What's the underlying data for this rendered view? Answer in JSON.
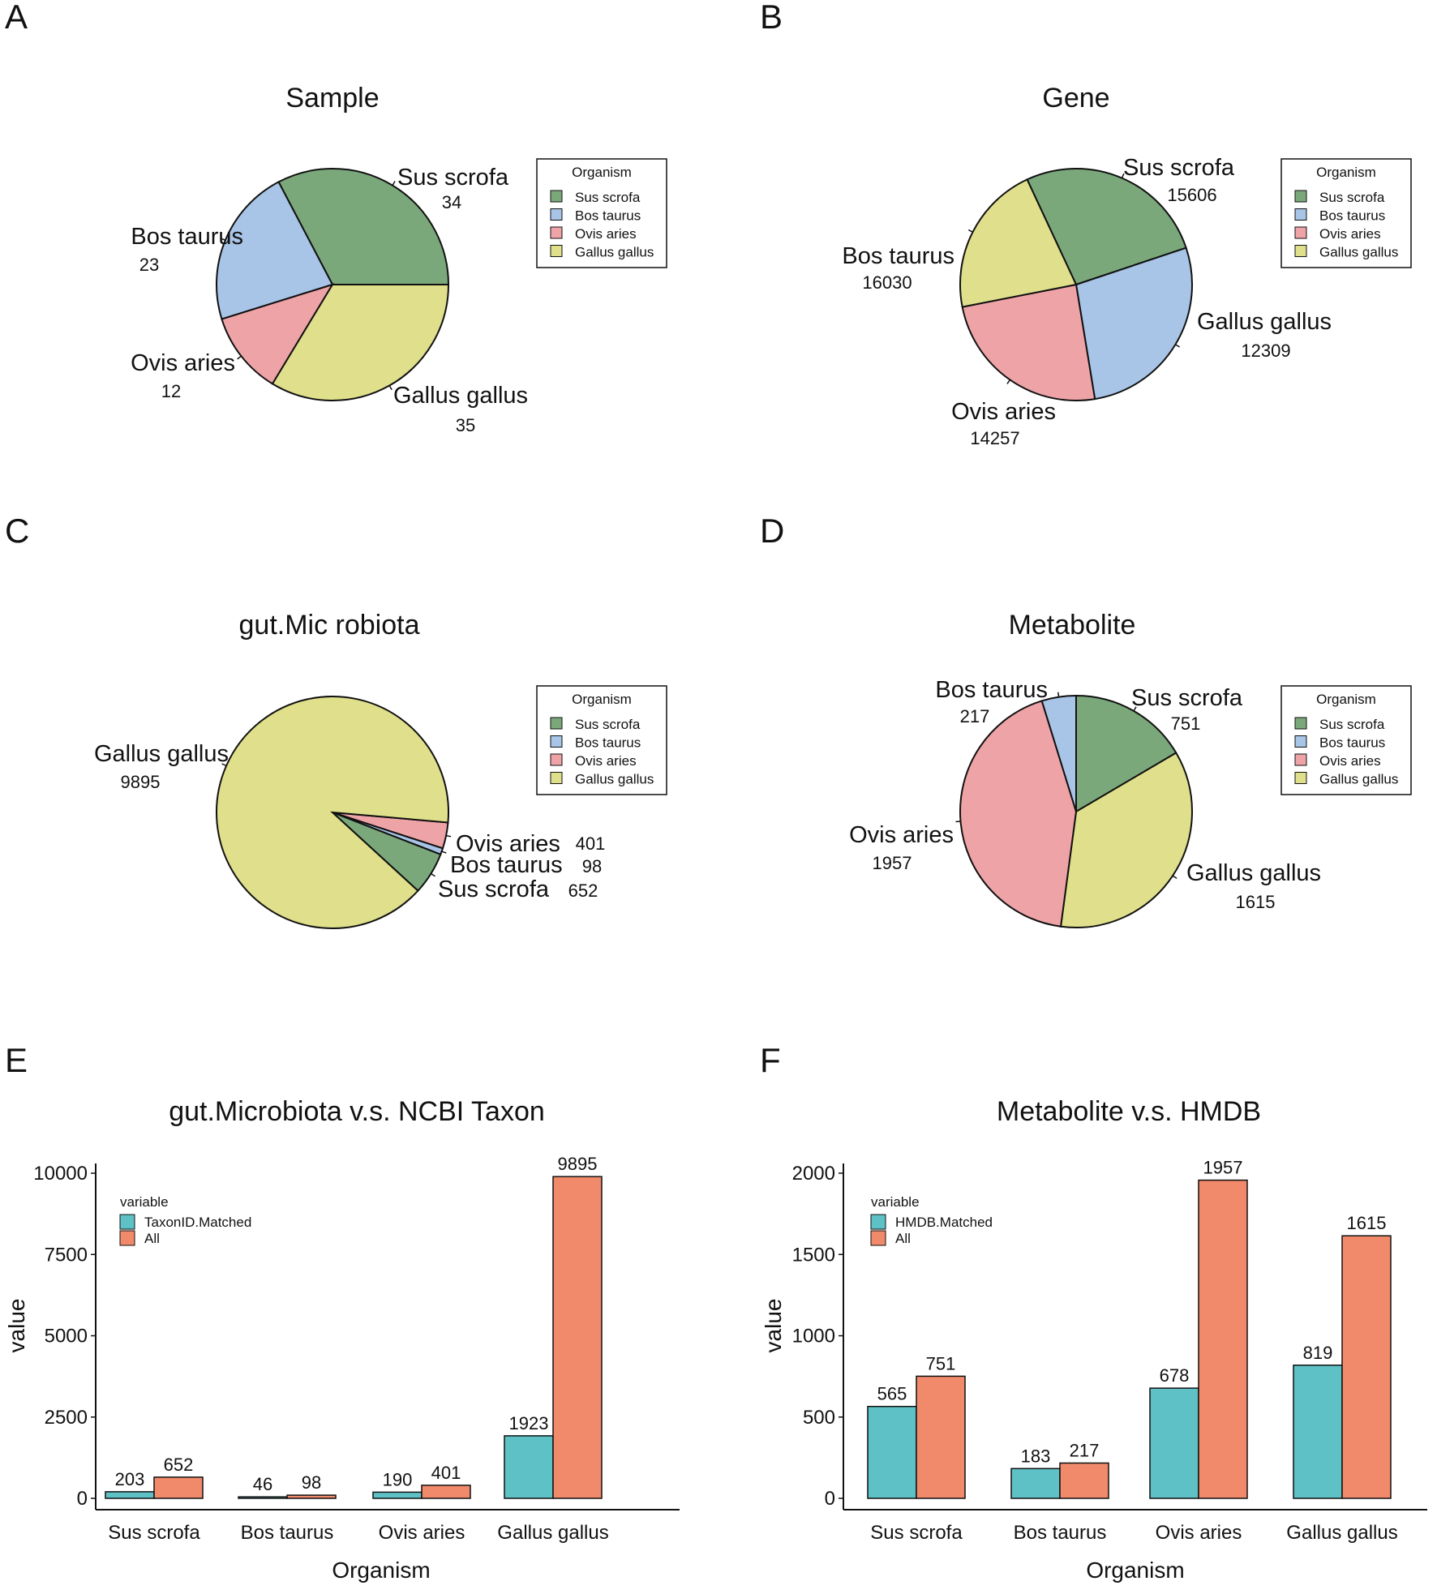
{
  "palette": {
    "Sus scrofa": "#7ba87b",
    "Bos taurus": "#a8c4e6",
    "Ovis aries": "#eea3a7",
    "Gallus gallus": "#dfdf8c",
    "matched": "#5ec1c5",
    "all": "#f08a6b"
  },
  "chart_data": [
    {
      "panel": "A",
      "type": "pie",
      "title": "Sample",
      "legend_title": "Organism",
      "legend": [
        "Sus scrofa",
        "Bos taurus",
        "Ovis aries",
        "Gallus gallus"
      ],
      "slices": [
        {
          "label": "Sus scrofa",
          "value": 34
        },
        {
          "label": "Bos taurus",
          "value": 23
        },
        {
          "label": "Ovis aries",
          "value": 12
        },
        {
          "label": "Gallus gallus",
          "value": 35
        }
      ]
    },
    {
      "panel": "B",
      "type": "pie",
      "title": "Gene",
      "legend_title": "Organism",
      "legend": [
        "Sus scrofa",
        "Bos taurus",
        "Ovis aries",
        "Gallus gallus"
      ],
      "slices": [
        {
          "label": "Sus scrofa",
          "value": 15606
        },
        {
          "label": "Bos taurus",
          "value": 16030
        },
        {
          "label": "Ovis aries",
          "value": 14257
        },
        {
          "label": "Gallus gallus",
          "value": 12309
        }
      ]
    },
    {
      "panel": "C",
      "type": "pie",
      "title": "gut.Mic robiota",
      "legend_title": "Organism",
      "legend": [
        "Sus scrofa",
        "Bos taurus",
        "Ovis aries",
        "Gallus gallus"
      ],
      "slices": [
        {
          "label": "Ovis aries",
          "value": 401
        },
        {
          "label": "Bos taurus",
          "value": 98
        },
        {
          "label": "Sus scrofa",
          "value": 652
        },
        {
          "label": "Gallus gallus",
          "value": 9895
        }
      ]
    },
    {
      "panel": "D",
      "type": "pie",
      "title": "Metabolite",
      "legend_title": "Organism",
      "legend": [
        "Sus scrofa",
        "Bos taurus",
        "Ovis aries",
        "Gallus gallus"
      ],
      "slices": [
        {
          "label": "Sus scrofa",
          "value": 751
        },
        {
          "label": "Gallus gallus",
          "value": 1615
        },
        {
          "label": "Ovis aries",
          "value": 1957
        },
        {
          "label": "Bos taurus",
          "value": 217
        }
      ]
    },
    {
      "panel": "E",
      "type": "bar",
      "title": "gut.Microbiota v.s. NCBI Taxon",
      "xlabel": "Organism",
      "ylabel": "value",
      "ylim": [
        0,
        10000
      ],
      "yticks": [
        0,
        2500,
        5000,
        7500,
        10000
      ],
      "categories": [
        "Sus scrofa",
        "Bos taurus",
        "Ovis aries",
        "Gallus gallus"
      ],
      "legend_title": "variable",
      "series": [
        {
          "name": "TaxonID.Matched",
          "values": [
            203,
            46,
            190,
            1923
          ]
        },
        {
          "name": "All",
          "values": [
            652,
            98,
            401,
            9895
          ]
        }
      ]
    },
    {
      "panel": "F",
      "type": "bar",
      "title": "Metabolite v.s. HMDB",
      "xlabel": "Organism",
      "ylabel": "value",
      "ylim": [
        0,
        2000
      ],
      "yticks": [
        0,
        500,
        1000,
        1500,
        2000
      ],
      "categories": [
        "Sus scrofa",
        "Bos taurus",
        "Ovis aries",
        "Gallus gallus"
      ],
      "legend_title": "variable",
      "series": [
        {
          "name": "HMDB.Matched",
          "values": [
            565,
            183,
            678,
            819
          ]
        },
        {
          "name": "All",
          "values": [
            751,
            217,
            1957,
            1615
          ]
        }
      ]
    }
  ]
}
